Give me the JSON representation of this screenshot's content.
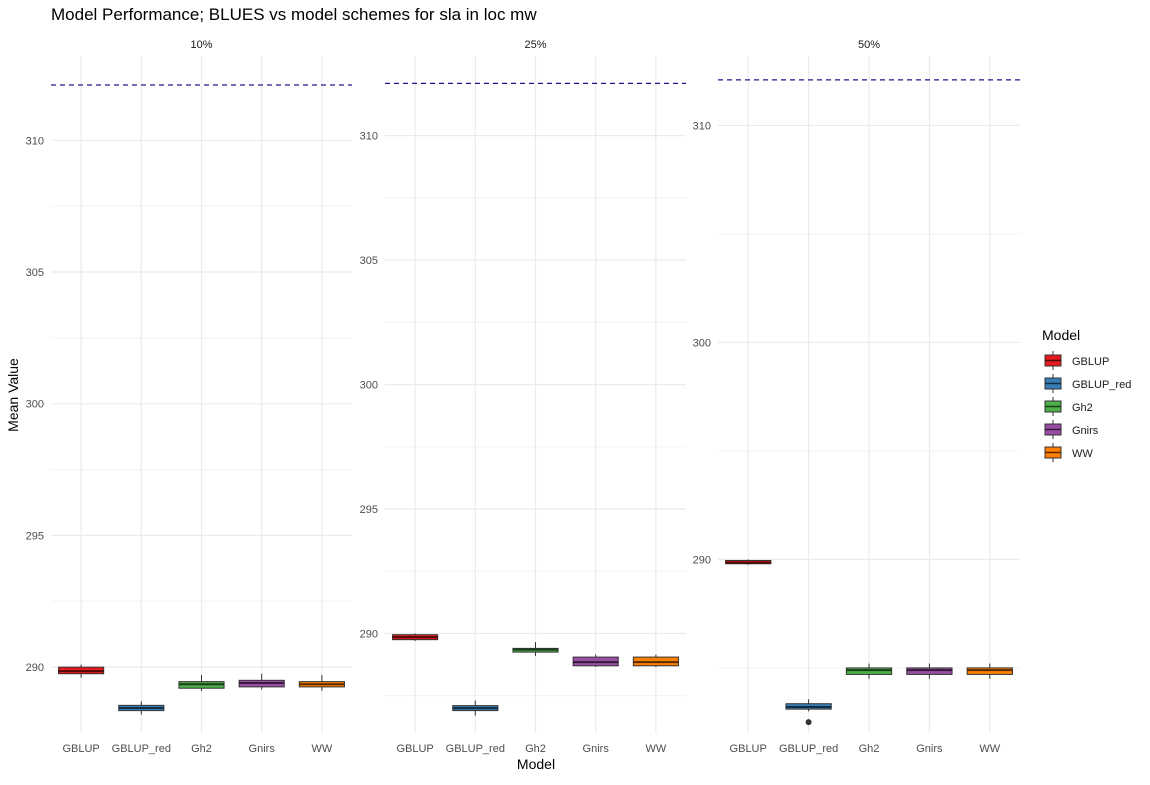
{
  "chart_data": {
    "type": "box",
    "title": "Model Performance; BLUES vs model schemes for sla in loc mw",
    "xlabel": "Model",
    "ylabel": "Mean Value",
    "legend": {
      "title": "Model",
      "placement": "right"
    },
    "grid": true,
    "reference_line": {
      "y": 312.1,
      "style": "dashed",
      "color": "#1a1a8c"
    },
    "categories": [
      "GBLUP",
      "GBLUP_red",
      "Gh2",
      "Gnirs",
      "WW"
    ],
    "colors": {
      "GBLUP": "#E41A1C",
      "GBLUP_red": "#377EB8",
      "Gh2": "#4DAF4A",
      "Gnirs": "#984EA3",
      "WW": "#FF7F00"
    },
    "panels": [
      {
        "label": "10%",
        "ylim": [
          287.5,
          313.2
        ],
        "yticks": [
          290,
          295,
          300,
          305,
          310
        ],
        "boxes": [
          {
            "model": "GBLUP",
            "min": 289.6,
            "q1": 289.75,
            "median": 289.85,
            "q3": 290.0,
            "max": 290.1,
            "outliers": []
          },
          {
            "model": "GBLUP_red",
            "min": 288.2,
            "q1": 288.35,
            "median": 288.45,
            "q3": 288.55,
            "max": 288.7,
            "outliers": []
          },
          {
            "model": "Gh2",
            "min": 289.1,
            "q1": 289.2,
            "median": 289.35,
            "q3": 289.45,
            "max": 289.7,
            "outliers": []
          },
          {
            "model": "Gnirs",
            "min": 289.15,
            "q1": 289.25,
            "median": 289.4,
            "q3": 289.5,
            "max": 289.75,
            "outliers": []
          },
          {
            "model": "WW",
            "min": 289.1,
            "q1": 289.25,
            "median": 289.35,
            "q3": 289.45,
            "max": 289.7,
            "outliers": []
          }
        ]
      },
      {
        "label": "25%",
        "ylim": [
          286.0,
          313.2
        ],
        "yticks": [
          290,
          295,
          300,
          305,
          310
        ],
        "boxes": [
          {
            "model": "GBLUP",
            "min": 289.7,
            "q1": 289.75,
            "median": 289.85,
            "q3": 289.95,
            "max": 290.0,
            "outliers": []
          },
          {
            "model": "GBLUP_red",
            "min": 286.7,
            "q1": 286.9,
            "median": 287.0,
            "q3": 287.1,
            "max": 287.3,
            "outliers": []
          },
          {
            "model": "Gh2",
            "min": 289.1,
            "q1": 289.25,
            "median": 289.35,
            "q3": 289.4,
            "max": 289.65,
            "outliers": []
          },
          {
            "model": "Gnirs",
            "min": 288.65,
            "q1": 288.7,
            "median": 288.85,
            "q3": 289.05,
            "max": 289.15,
            "outliers": []
          },
          {
            "model": "WW",
            "min": 288.65,
            "q1": 288.7,
            "median": 288.85,
            "q3": 289.05,
            "max": 289.15,
            "outliers": []
          }
        ]
      },
      {
        "label": "50%",
        "ylim": [
          282.0,
          313.2
        ],
        "yticks": [
          290,
          300,
          310
        ],
        "boxes": [
          {
            "model": "GBLUP",
            "min": 289.75,
            "q1": 289.8,
            "median": 289.85,
            "q3": 289.95,
            "max": 290.0,
            "outliers": []
          },
          {
            "model": "GBLUP_red",
            "min": 283.0,
            "q1": 283.1,
            "median": 283.2,
            "q3": 283.35,
            "max": 283.55,
            "outliers": [
              282.5
            ]
          },
          {
            "model": "Gh2",
            "min": 284.5,
            "q1": 284.7,
            "median": 284.9,
            "q3": 285.0,
            "max": 285.2,
            "outliers": []
          },
          {
            "model": "Gnirs",
            "min": 284.5,
            "q1": 284.7,
            "median": 284.9,
            "q3": 285.0,
            "max": 285.2,
            "outliers": []
          },
          {
            "model": "WW",
            "min": 284.5,
            "q1": 284.7,
            "median": 284.9,
            "q3": 285.0,
            "max": 285.2,
            "outliers": []
          }
        ]
      }
    ]
  }
}
